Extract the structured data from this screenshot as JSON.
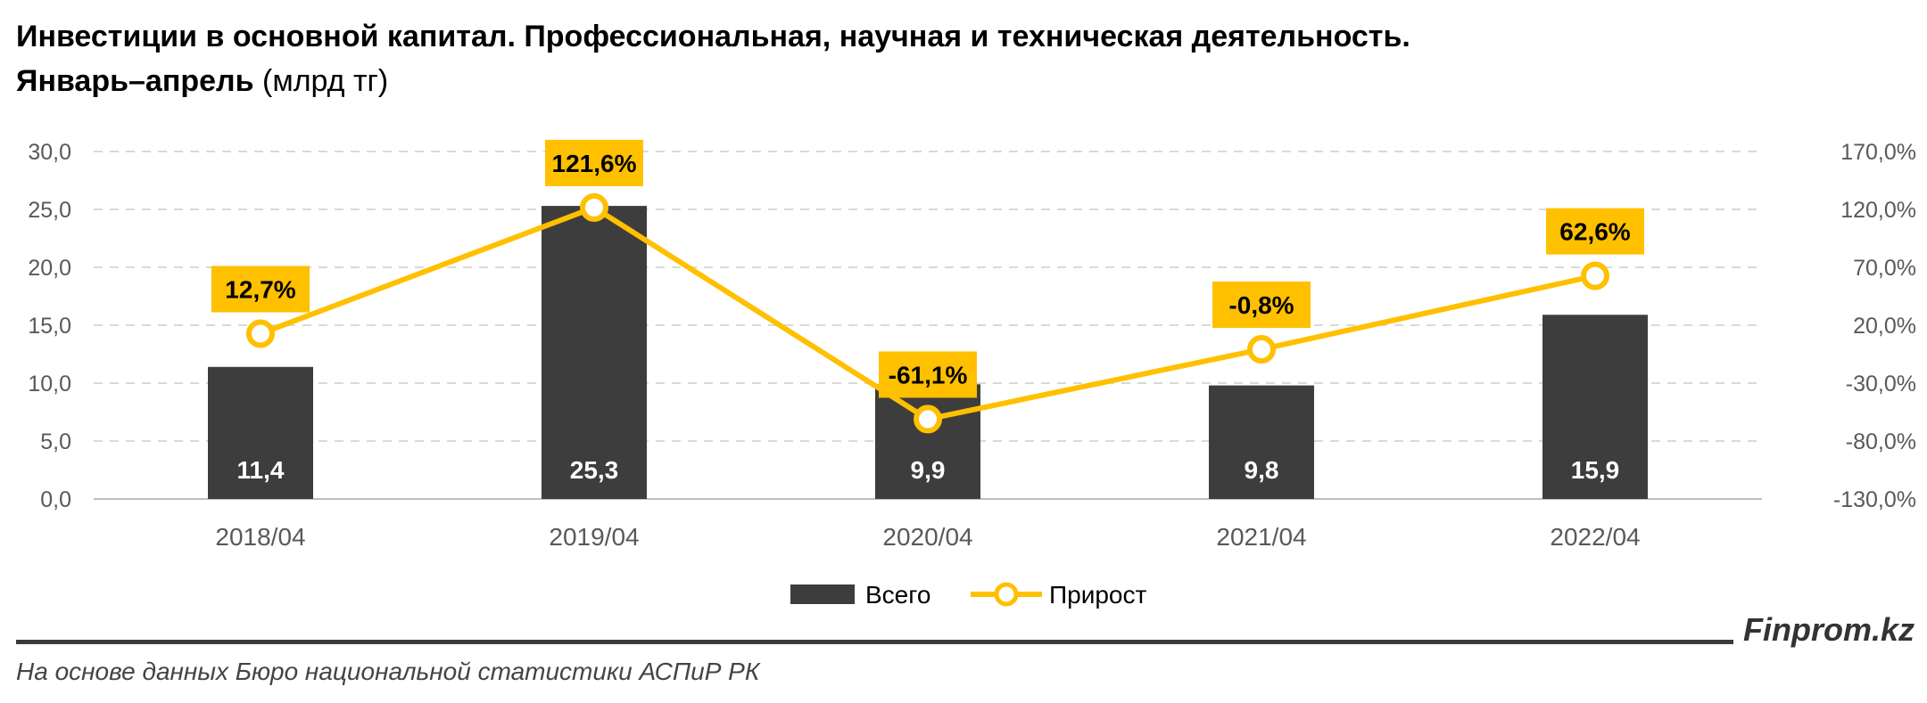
{
  "header": {
    "title_line1": "Инвестиции в основной капитал. Профессиональная, научная и техническая деятельность.",
    "title_line2_bold": "Январь–апрель",
    "title_line2_normal": " (млрд тг)"
  },
  "footer": {
    "brand": "Finprom.kz",
    "source": "На основе данных Бюро национальной статистики АСПиР РК"
  },
  "colors": {
    "bar": "#3d3d3d",
    "line": "#ffc000",
    "grid": "#d9d9d9",
    "axis_text": "#595959"
  },
  "chart_data": {
    "type": "bar",
    "categories": [
      "2018/04",
      "2019/04",
      "2020/04",
      "2021/04",
      "2022/04"
    ],
    "series": [
      {
        "name": "Всего",
        "type": "bar",
        "axis": "left",
        "values": [
          11.4,
          25.3,
          9.9,
          9.8,
          15.9
        ],
        "labels": [
          "11,4",
          "25,3",
          "9,9",
          "9,8",
          "15,9"
        ]
      },
      {
        "name": "Прирост",
        "type": "line",
        "axis": "right",
        "values": [
          12.7,
          121.6,
          -61.1,
          -0.8,
          62.6
        ],
        "labels": [
          "12,7%",
          "121,6%",
          "-61,1%",
          "-0,8%",
          "62,6%"
        ]
      }
    ],
    "ylim_left": [
      0,
      30
    ],
    "ylim_right": [
      -130,
      170
    ],
    "yticks_left": [
      "0,0",
      "5,0",
      "10,0",
      "15,0",
      "20,0",
      "25,0",
      "30,0"
    ],
    "yticks_right": [
      "-130,0%",
      "-80,0%",
      "-30,0%",
      "20,0%",
      "70,0%",
      "120,0%",
      "170,0%"
    ],
    "grid": true,
    "legend_position": "bottom"
  }
}
